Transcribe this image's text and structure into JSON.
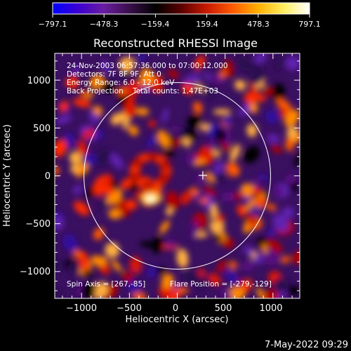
{
  "chart_data": {
    "type": "heatmap",
    "title": "Reconstructed RHESSI Image",
    "xlabel": "Heliocentric X (arcsec)",
    "ylabel": "Heliocentric Y (arcsec)",
    "xlim": [
      -1280,
      1280
    ],
    "ylim": [
      -1280,
      1280
    ],
    "x_ticks": [
      -1000,
      -500,
      0,
      500,
      1000
    ],
    "y_ticks": [
      -1000,
      -500,
      0,
      500,
      1000
    ],
    "x_tick_labels": [
      "−1000",
      "−500",
      "0",
      "500",
      "1000"
    ],
    "y_tick_labels": [
      "−1000",
      "−500",
      "0",
      "500",
      "1000"
    ],
    "colorbar": {
      "min": -797.1,
      "max": 797.1,
      "tick_labels": [
        "−797.1",
        "−478.3",
        "−159.4",
        "159.4",
        "478.3",
        "797.1"
      ],
      "tick_values": [
        -797.1,
        -478.3,
        -159.4,
        159.4,
        478.3,
        797.1
      ],
      "colors": [
        "#0000ff",
        "#3c00d0",
        "#6a1da0",
        "#3a0f4a",
        "#000000",
        "#5a0000",
        "#c81a00",
        "#ff5a00",
        "#ffb000",
        "#ffee60",
        "#ffffff"
      ]
    },
    "annotations": [
      "24-Nov-2003 06:57:36.000 to 07:00:12.000",
      "Detectors: 7F 8F 9F, Att 0",
      "Energy Range: 6.0 - 12.0 keV",
      "Back Projection    Total counts: 1.47E+03"
    ],
    "spin_axis": "Spin Axis = [267,-85]",
    "flare_position_label": "Flare Position = [-279,-129]",
    "solar_disk_radius_arcsec": 975,
    "marker": {
      "x": 267,
      "y": -85
    },
    "bright_source": {
      "x": -279,
      "y": -129
    }
  },
  "footer": {
    "date": "7-May-2022 09:29"
  }
}
